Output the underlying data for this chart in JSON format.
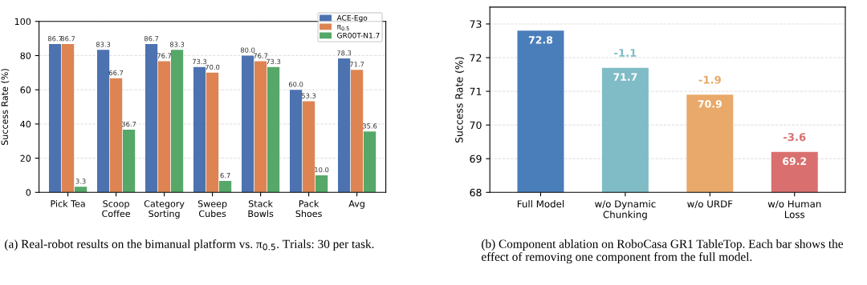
{
  "chart_data": [
    {
      "type": "bar",
      "categories": [
        "Pick Tea",
        "Scoop\nCoffee",
        "Category\nSorting",
        "Sweep\nCubes",
        "Stack\nBowls",
        "Pack\nShoes",
        "Avg"
      ],
      "ylabel": "Success Rate (%)",
      "ylim": [
        0,
        100
      ],
      "yticks": [
        0,
        20,
        40,
        60,
        80,
        100
      ],
      "grid": "y",
      "legend": "top right",
      "series": [
        {
          "name": "ACE-Ego",
          "color": "#4c72b0",
          "values": [
            86.7,
            83.3,
            86.7,
            73.3,
            80.0,
            60.0,
            78.3
          ],
          "value_labels": [
            "86.7",
            "83.3",
            "86.7",
            "73.3",
            "80.0",
            "60.0",
            "78.3"
          ]
        },
        {
          "name": "π$_{0.5}$",
          "color": "#dd8452",
          "values": [
            86.7,
            66.7,
            76.7,
            70.0,
            76.7,
            53.3,
            71.7
          ],
          "value_labels": [
            "86.7",
            "66.7",
            "76.7",
            "70.0",
            "76.7",
            "53.3",
            "71.7"
          ]
        },
        {
          "name": "GR00T-N1.7",
          "color": "#55a868",
          "values": [
            3.3,
            36.7,
            83.3,
            6.7,
            73.3,
            10.0,
            35.6
          ],
          "value_labels": [
            "3.3",
            "36.7",
            "83.3",
            "6.7",
            "73.3",
            "10.0",
            "35.6"
          ]
        }
      ],
      "annotations": [
        "(a) Real-robot results on the bimanual platform vs. π$_{0.5}$. Trials: 30 per task."
      ]
    },
    {
      "type": "bar",
      "categories": [
        "Full Model",
        "w/o Dynamic\nChunking",
        "w/o URDF",
        "w/o Human\nLoss"
      ],
      "ylabel": "Success Rate (%)",
      "ylim": [
        68,
        73.5
      ],
      "yticks": [
        68,
        69,
        70,
        71,
        72,
        73
      ],
      "grid": "y",
      "values": [
        72.8,
        71.7,
        70.9,
        69.2
      ],
      "colors": [
        "#4a7ebb",
        "#7fbcc6",
        "#e9a96a",
        "#d9706f"
      ],
      "data_labels": true,
      "annotations": [
        {
          "text": "-1.1",
          "x": "w/o Dynamic\nChunking",
          "y": 71.7
        },
        {
          "text": "-1.9",
          "x": "w/o URDF",
          "y": 70.9
        },
        {
          "text": "-3.6",
          "x": "w/o Human\nLoss",
          "y": 69.2
        },
        "(b) Component ablation on RoboCasa GR1 TableTop. Each bar shows the effect of removing one component from the full model."
      ]
    }
  ]
}
